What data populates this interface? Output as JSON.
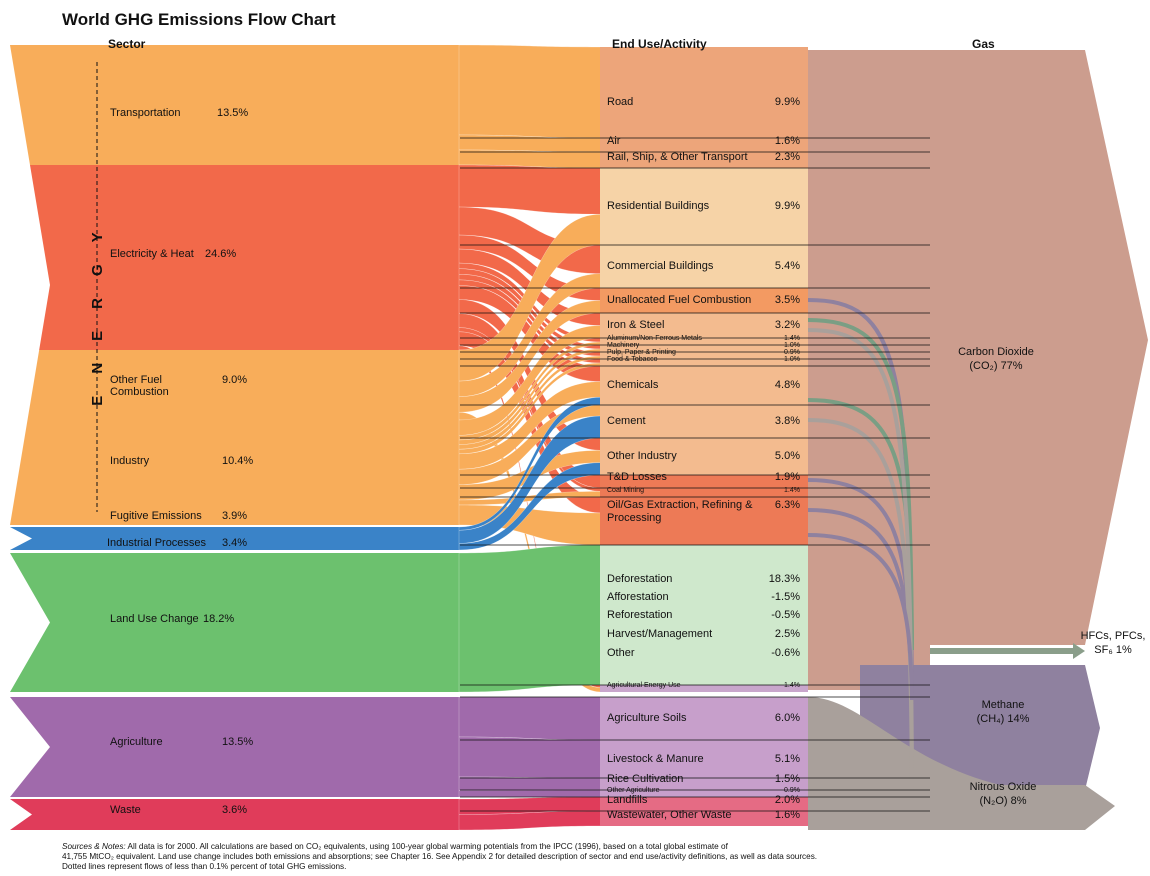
{
  "title": "World GHG Emissions Flow Chart",
  "headers": {
    "sector": "Sector",
    "end_use": "End Use/Activity",
    "gas": "Gas"
  },
  "energy_label": "ENERGY",
  "sectors": [
    {
      "label": "Transportation",
      "pct": "13.5%"
    },
    {
      "label": "Electricity & Heat",
      "pct": "24.6%"
    },
    {
      "label": "Other Fuel Combustion",
      "pct": "9.0%"
    },
    {
      "label": "Industry",
      "pct": "10.4%"
    },
    {
      "label": "Fugitive Emissions",
      "pct": "3.9%"
    },
    {
      "label": "Industrial Processes",
      "pct": "3.4%"
    },
    {
      "label": "Land Use Change",
      "pct": "18.2%"
    },
    {
      "label": "Agriculture",
      "pct": "13.5%"
    },
    {
      "label": "Waste",
      "pct": "3.6%"
    }
  ],
  "end_uses": [
    {
      "label": "Road",
      "pct": "9.9%"
    },
    {
      "label": "Air",
      "pct": "1.6%"
    },
    {
      "label": "Rail, Ship, & Other Transport",
      "pct": "2.3%"
    },
    {
      "label": "Residential Buildings",
      "pct": "9.9%"
    },
    {
      "label": "Commercial Buildings",
      "pct": "5.4%"
    },
    {
      "label": "Unallocated Fuel Combustion",
      "pct": "3.5%"
    },
    {
      "label": "Iron & Steel",
      "pct": "3.2%"
    },
    {
      "label": "Aluminum/Non-Ferrous Metals",
      "pct": "1.4%"
    },
    {
      "label": "Machinery",
      "pct": "1.0%"
    },
    {
      "label": "Pulp, Paper & Printing",
      "pct": "0.9%"
    },
    {
      "label": "Food & Tobacco",
      "pct": "1.0%"
    },
    {
      "label": "Chemicals",
      "pct": "4.8%"
    },
    {
      "label": "Cement",
      "pct": "3.8%"
    },
    {
      "label": "Other Industry",
      "pct": "5.0%"
    },
    {
      "label": "T&D Losses",
      "pct": "1.9%"
    },
    {
      "label": "Coal Mining",
      "pct": "1.4%"
    },
    {
      "label": "Oil/Gas Extraction, Refining & Processing",
      "pct": "6.3%"
    },
    {
      "label": "Deforestation",
      "pct": "18.3%"
    },
    {
      "label": "Afforestation",
      "pct": "-1.5%"
    },
    {
      "label": "Reforestation",
      "pct": "-0.5%"
    },
    {
      "label": "Harvest/Management",
      "pct": "2.5%"
    },
    {
      "label": "Other",
      "pct": "-0.6%"
    },
    {
      "label": "Agricultural Energy Use",
      "pct": "1.4%"
    },
    {
      "label": "Agriculture Soils",
      "pct": "6.0%"
    },
    {
      "label": "Livestock & Manure",
      "pct": "5.1%"
    },
    {
      "label": "Rice Cultivation",
      "pct": "1.5%"
    },
    {
      "label": "Other Agriculture",
      "pct": "0.9%"
    },
    {
      "label": "Landfills",
      "pct": "2.0%"
    },
    {
      "label": "Wastewater, Other Waste",
      "pct": "1.6%"
    }
  ],
  "gases": [
    {
      "name": "Carbon Dioxide",
      "formula": "(CO₂)",
      "pct": "77%"
    },
    {
      "name": "HFCs, PFCs,",
      "formula": "SF₆",
      "pct": "1%"
    },
    {
      "name": "Methane",
      "formula": "(CH₄)",
      "pct": "14%"
    },
    {
      "name": "Nitrous Oxide",
      "formula": "(N₂O)",
      "pct": "8%"
    }
  ],
  "notes": {
    "label": "Sources & Notes:",
    "lines": [
      "All data is for 2000.  All calculations are based on CO₂ equivalents, using 100-year global warming potentials from the IPCC (1996), based on a total global estimate of",
      "41,755 MtCO₂ equivalent.  Land use change includes both emissions and absorptions; see Chapter 16.  See Appendix 2 for detailed description of sector and end use/activity definitions, as well as data sources.",
      "Dotted lines represent flows of less than 0.1% percent of total GHG emissions."
    ]
  }
}
